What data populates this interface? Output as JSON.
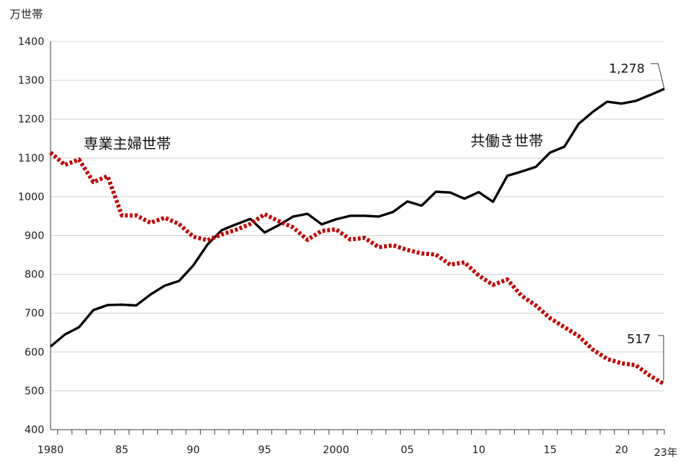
{
  "chart_data": {
    "type": "line",
    "ylabel": "万世帯",
    "ylim": [
      400,
      1400
    ],
    "yticks": [
      400,
      500,
      600,
      700,
      800,
      900,
      1000,
      1100,
      1200,
      1300,
      1400
    ],
    "xlim": [
      1980,
      2023
    ],
    "x_tick_labels": [
      {
        "year": 1980,
        "label": "1980"
      },
      {
        "year": 1985,
        "label": "85"
      },
      {
        "year": 1990,
        "label": "90"
      },
      {
        "year": 1995,
        "label": "95"
      },
      {
        "year": 2000,
        "label": "2000"
      },
      {
        "year": 2005,
        "label": "05"
      },
      {
        "year": 2010,
        "label": "10"
      },
      {
        "year": 2015,
        "label": "15"
      },
      {
        "year": 2020,
        "label": "20"
      },
      {
        "year": 2023,
        "label": "23年"
      }
    ],
    "grid": true,
    "x": [
      1980,
      1981,
      1982,
      1983,
      1984,
      1985,
      1986,
      1987,
      1988,
      1989,
      1990,
      1991,
      1992,
      1993,
      1994,
      1995,
      1996,
      1997,
      1998,
      1999,
      2000,
      2001,
      2002,
      2003,
      2004,
      2005,
      2006,
      2007,
      2008,
      2009,
      2010,
      2011,
      2012,
      2013,
      2014,
      2015,
      2016,
      2017,
      2018,
      2019,
      2020,
      2021,
      2022,
      2023
    ],
    "series": [
      {
        "name": "共働き世帯",
        "style": "solid",
        "color": "#000000",
        "values": [
          614,
          645,
          664,
          708,
          721,
          722,
          720,
          748,
          771,
          783,
          823,
          877,
          914,
          929,
          943,
          908,
          927,
          949,
          956,
          929,
          942,
          951,
          951,
          949,
          961,
          988,
          977,
          1013,
          1011,
          995,
          1012,
          987,
          1054,
          1065,
          1077,
          1114,
          1129,
          1188,
          1219,
          1245,
          1240,
          1247,
          1262,
          1278
        ]
      },
      {
        "name": "専業主婦世帯",
        "style": "dotted",
        "color": "#c00000",
        "values": [
          1114,
          1082,
          1096,
          1038,
          1053,
          952,
          952,
          933,
          946,
          930,
          897,
          888,
          903,
          915,
          930,
          955,
          937,
          921,
          889,
          912,
          916,
          890,
          894,
          870,
          875,
          863,
          854,
          851,
          825,
          831,
          797,
          773,
          787,
          745,
          720,
          687,
          664,
          641,
          606,
          582,
          571,
          566,
          539,
          517
        ]
      }
    ],
    "annotations": [
      {
        "text": "専業主婦世帯",
        "target": "専業主婦世帯"
      },
      {
        "text": "共働き世帯",
        "target": "共働き世帯"
      },
      {
        "text": "1,278",
        "target": "共働き世帯",
        "year": 2023
      },
      {
        "text": "517",
        "target": "専業主婦世帯",
        "year": 2023
      }
    ]
  }
}
